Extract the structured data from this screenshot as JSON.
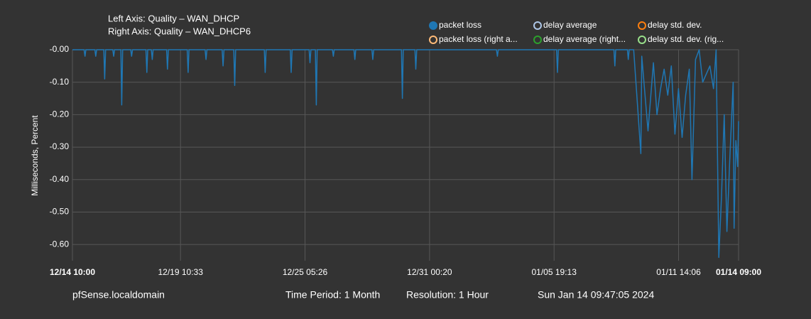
{
  "chart_data": {
    "type": "line",
    "title": "Left Axis: Quality – WAN_DHCP",
    "subtitle": "Right Axis: Quality – WAN_DHCP6",
    "ylabel": "Milliseconds, Percent",
    "xlim": [
      0,
      743
    ],
    "xticks": [
      {
        "value": 0,
        "label": "12/14 10:00"
      },
      {
        "value": 120.55,
        "label": "12/19 10:33"
      },
      {
        "value": 259.43,
        "label": "12/25 05:26"
      },
      {
        "value": 398.33,
        "label": "12/31 00:20"
      },
      {
        "value": 537.22,
        "label": "01/05 19:13"
      },
      {
        "value": 676.1,
        "label": "01/11 14:06"
      },
      {
        "value": 743,
        "label": "01/14 09:00"
      }
    ],
    "ylim": [
      -0.65,
      0
    ],
    "yticks": [
      {
        "value": 0,
        "label": "-0.00"
      },
      {
        "value": -0.1,
        "label": "-0.10"
      },
      {
        "value": -0.2,
        "label": "-0.20"
      },
      {
        "value": -0.3,
        "label": "-0.30"
      },
      {
        "value": -0.4,
        "label": "-0.40"
      },
      {
        "value": -0.5,
        "label": "-0.50"
      },
      {
        "value": -0.6,
        "label": "-0.60"
      }
    ],
    "grid": true,
    "legend": [
      {
        "name": "packet loss",
        "color": "#1f77b4",
        "filled": true
      },
      {
        "name": "delay average",
        "color": "#aec7e8",
        "filled": false
      },
      {
        "name": "delay std. dev.",
        "color": "#ff7f0e",
        "filled": false
      },
      {
        "name": "packet loss (right a...",
        "color": "#ffbb78",
        "filled": false
      },
      {
        "name": "delay average (right...",
        "color": "#2ca02c",
        "filled": false
      },
      {
        "name": "delay std. dev. (rig...",
        "color": "#98df8a",
        "filled": false
      }
    ],
    "x": [
      0,
      13,
      14,
      15,
      25,
      26,
      27,
      35,
      36,
      37,
      45,
      46,
      47,
      54,
      55,
      56,
      65,
      66,
      67,
      82,
      83,
      84,
      88,
      89,
      90,
      105,
      106,
      107,
      128,
      129,
      130,
      148,
      149,
      150,
      167,
      168,
      169,
      180,
      181,
      182,
      214,
      215,
      216,
      243,
      244,
      245,
      264,
      265,
      266,
      271,
      272,
      273,
      290,
      291,
      292,
      314,
      315,
      316,
      334,
      335,
      336,
      367,
      368,
      369,
      382,
      383,
      384,
      473,
      474,
      475,
      540,
      541,
      542,
      604,
      605,
      606,
      619,
      620,
      621,
      626,
      634,
      635,
      642,
      648,
      652,
      656,
      660,
      664,
      668,
      672,
      676,
      680,
      684,
      688,
      691,
      695,
      699,
      703,
      711,
      715,
      718,
      721,
      724,
      727,
      730,
      733,
      737,
      738,
      740,
      742,
      743
    ],
    "series": [
      {
        "name": "packet loss",
        "color": "#1f77b4",
        "values": [
          0,
          0,
          -0.02,
          0,
          0,
          -0.02,
          0,
          0,
          -0.09,
          0,
          0,
          -0.02,
          0,
          0,
          -0.17,
          0,
          0,
          -0.02,
          0,
          0,
          -0.07,
          0,
          0,
          -0.03,
          0,
          0,
          -0.06,
          0,
          0,
          -0.07,
          0,
          0,
          -0.03,
          0,
          0,
          -0.05,
          0,
          0,
          -0.11,
          0,
          0,
          -0.07,
          0,
          0,
          -0.07,
          0,
          0,
          -0.04,
          0,
          0,
          -0.17,
          0,
          0,
          -0.02,
          0,
          0,
          -0.03,
          0,
          0,
          -0.03,
          0,
          0,
          -0.15,
          0,
          0,
          -0.06,
          0,
          0,
          -0.02,
          0,
          0,
          -0.07,
          0,
          0,
          -0.05,
          0,
          0,
          -0.03,
          0,
          0,
          -0.32,
          -0.02,
          -0.25,
          -0.04,
          -0.2,
          -0.12,
          -0.06,
          -0.14,
          -0.05,
          -0.26,
          -0.12,
          -0.27,
          -0.14,
          -0.06,
          -0.4,
          -0.03,
          0,
          -0.1,
          -0.05,
          -0.12,
          0,
          -0.64,
          -0.45,
          -0.2,
          -0.56,
          -0.35,
          -0.1,
          -0.55,
          -0.28,
          -0.36,
          -0.22
        ]
      }
    ]
  },
  "footer": {
    "host": "pfSense.localdomain",
    "period": "Time Period: 1 Month",
    "resolution": "Resolution: 1 Hour",
    "timestamp": "Sun Jan 14 09:47:05 2024"
  }
}
